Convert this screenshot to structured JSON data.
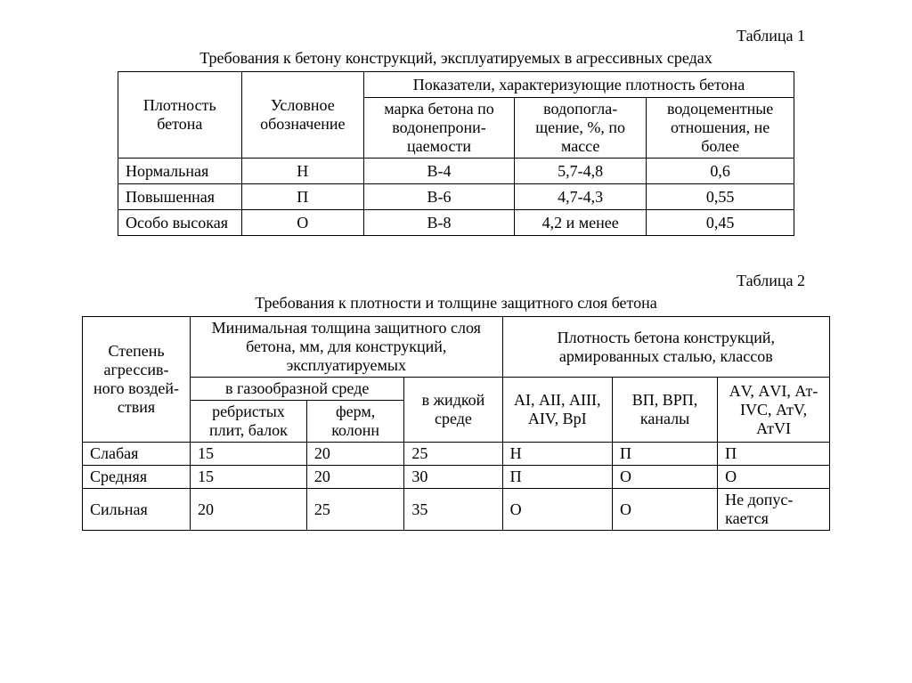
{
  "table1": {
    "label": "Таблица 1",
    "caption": "Требования к бетону конструкций, эксплуатируемых в агрессивных средах",
    "head": {
      "col0": "Плотность бетона",
      "col1": "Условное обозначение",
      "group": "Показатели, характеризующие плотность бетона",
      "col2": "марка бетона по водонепрони- цаемости",
      "col3": "водопогла- щение, %, по массе",
      "col4": "водоцементные отношения, не более"
    },
    "rows": [
      {
        "c0": "Нормальная",
        "c1": "Н",
        "c2": "В-4",
        "c3": "5,7-4,8",
        "c4": "0,6"
      },
      {
        "c0": "Повышенная",
        "c1": "П",
        "c2": "В-6",
        "c3": "4,7-4,3",
        "c4": "0,55"
      },
      {
        "c0": "Особо высокая",
        "c1": "О",
        "c2": "В-8",
        "c3": "4,2 и менее",
        "c4": "0,45"
      }
    ]
  },
  "table2": {
    "label": "Таблица 2",
    "caption": "Требования к плотности и толщине защитного слоя бетона",
    "head": {
      "col0": "Степень агрессив- ного воздей- ствия",
      "groupA": "Минимальная толщина защитного слоя бетона, мм, для конструкций, эксплуатируемых",
      "groupB": "Плотность бетона конструкций, армированных сталью, классов",
      "subA": "в газообразной среде",
      "col1": "ребристых плит, балок",
      "col2": "ферм, колонн",
      "col3": "в жидкой среде",
      "col4": "АI, АII, АIII, АIV, ВрI",
      "col5": "ВП, ВРП, каналы",
      "col6": "АV, АVI, Ат-IVС, АтV, АтVI"
    },
    "rows": [
      {
        "c0": "Слабая",
        "c1": "15",
        "c2": "20",
        "c3": "25",
        "c4": "Н",
        "c5": "П",
        "c6": "П"
      },
      {
        "c0": "Средняя",
        "c1": "15",
        "c2": "20",
        "c3": "30",
        "c4": "П",
        "c5": "О",
        "c6": "О"
      },
      {
        "c0": "Сильная",
        "c1": "20",
        "c2": "25",
        "c3": "35",
        "c4": "О",
        "c5": "О",
        "c6": "Не допус- кается"
      }
    ]
  }
}
